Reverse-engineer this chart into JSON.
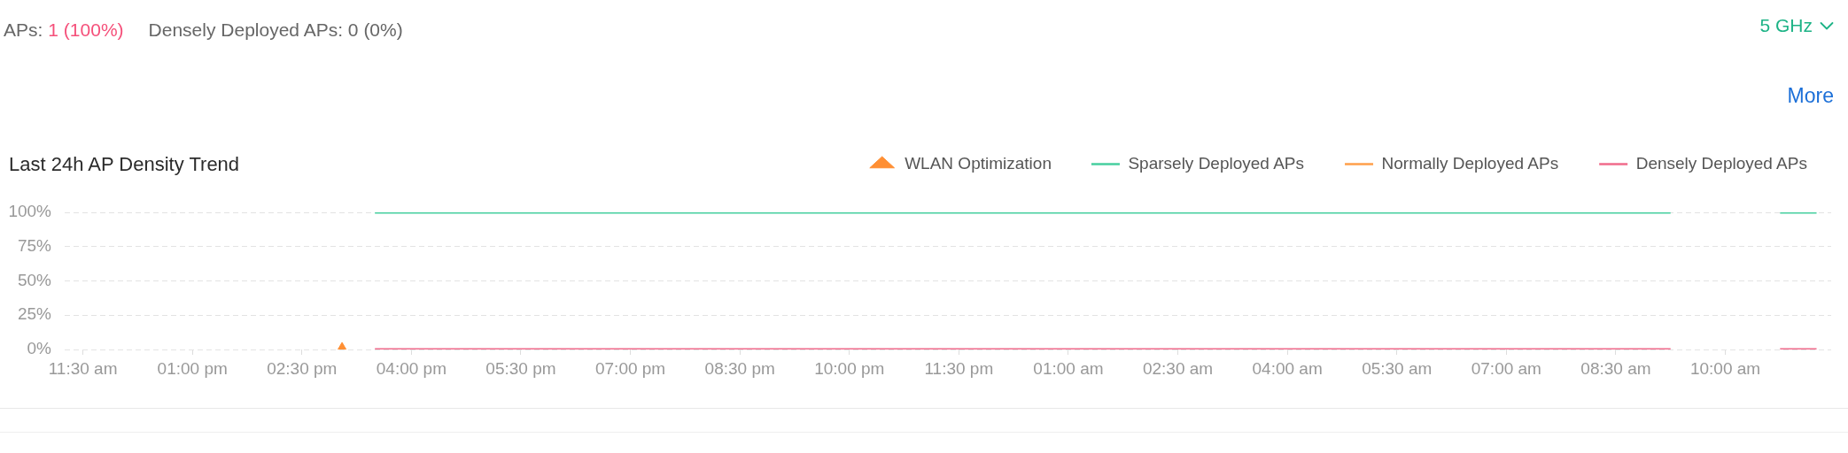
{
  "chart_data": {
    "type": "line",
    "title": "Last 24h AP Density Trend",
    "annotations": [
      "APs:",
      "1 (100%)",
      "Densely Deployed APs: 0 (0%)",
      "5 GHz",
      "More"
    ],
    "x": [
      "--01-01T15:30",
      "--01-02T09:15",
      "--01-02T10:00",
      "--01-02T10:45",
      "--01-02T11:15"
    ],
    "xlim": [
      "--01-01T11:15",
      "--01-02T11:27"
    ],
    "xticks": [
      {
        "value": "--01-01T11:30",
        "label": "11:30 am"
      },
      {
        "value": "--01-01T13:00",
        "label": "01:00 pm"
      },
      {
        "value": "--01-01T14:30",
        "label": "02:30 pm"
      },
      {
        "value": "--01-01T16:00",
        "label": "04:00 pm"
      },
      {
        "value": "--01-01T17:30",
        "label": "05:30 pm"
      },
      {
        "value": "--01-01T19:00",
        "label": "07:00 pm"
      },
      {
        "value": "--01-01T20:30",
        "label": "08:30 pm"
      },
      {
        "value": "--01-01T22:00",
        "label": "10:00 pm"
      },
      {
        "value": "--01-01T23:30",
        "label": "11:30 pm"
      },
      {
        "value": "--01-02T01:00",
        "label": "01:00 am"
      },
      {
        "value": "--01-02T02:30",
        "label": "02:30 am"
      },
      {
        "value": "--01-02T04:00",
        "label": "04:00 am"
      },
      {
        "value": "--01-02T05:30",
        "label": "05:30 am"
      },
      {
        "value": "--01-02T07:00",
        "label": "07:00 am"
      },
      {
        "value": "--01-02T08:30",
        "label": "08:30 am"
      },
      {
        "value": "--01-02T10:00",
        "label": "10:00 am"
      }
    ],
    "ylim": [
      0,
      100
    ],
    "yticks": [
      {
        "value": 0,
        "label": "0%"
      },
      {
        "value": 25,
        "label": "25%"
      },
      {
        "value": 50,
        "label": "50%"
      },
      {
        "value": 75,
        "label": "75%"
      },
      {
        "value": 100,
        "label": "100%"
      }
    ],
    "grid": "y",
    "legend": "top right",
    "series": [
      {
        "name": "WLAN Optimization",
        "type": "scatter",
        "marker": "triangle",
        "color": "#ff8f33",
        "x": [
          "--01-01T15:03"
        ],
        "values": [
          0
        ]
      },
      {
        "name": "Sparsely Deployed APs",
        "color": "#46cf9f",
        "values": [
          100,
          100,
          null,
          100,
          100
        ]
      },
      {
        "name": "Normally Deployed APs",
        "color": "#ff9f4a",
        "values": [
          null,
          null,
          null,
          null,
          null
        ]
      },
      {
        "name": "Densely Deployed APs",
        "color": "#f06b8b",
        "values": [
          0,
          0,
          null,
          0,
          0
        ]
      }
    ]
  }
}
